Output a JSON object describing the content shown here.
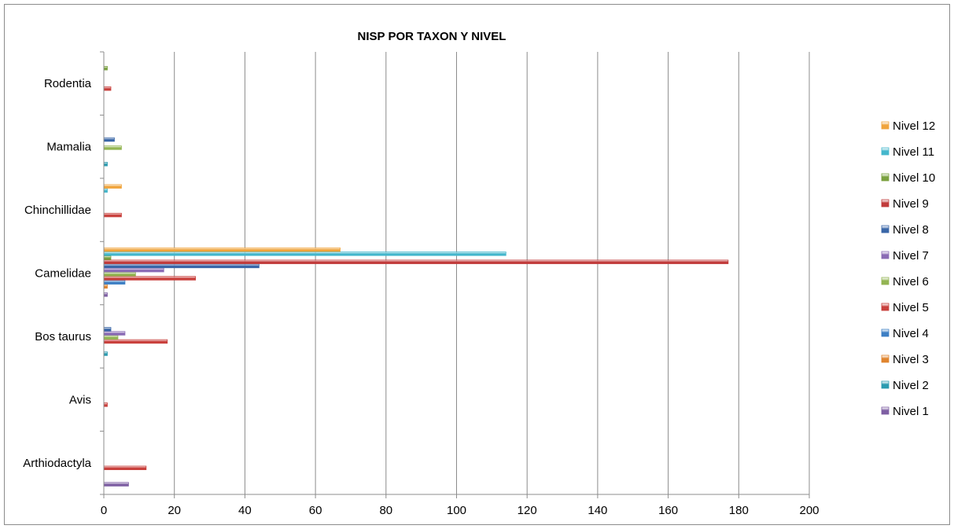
{
  "chart_data": {
    "type": "bar",
    "orientation": "horizontal",
    "title": "NISP POR  TAXON Y NIVEL",
    "xlabel": "",
    "ylabel": "",
    "xlim": [
      0,
      200
    ],
    "x_ticks": [
      0,
      20,
      40,
      60,
      80,
      100,
      120,
      140,
      160,
      180,
      200
    ],
    "grid": "vertical",
    "legend_position": "right",
    "categories": [
      "Arthiodactyla",
      "Avis",
      "Bos taurus",
      "Camelidae",
      "Chinchillidae",
      "Mamalia",
      "Rodentia"
    ],
    "series": [
      {
        "name": "Nivel 1",
        "color": "#7e5fa3",
        "values": [
          7,
          0,
          0,
          1,
          0,
          0,
          0
        ]
      },
      {
        "name": "Nivel 2",
        "color": "#2b9bb0",
        "values": [
          0,
          0,
          1,
          0,
          0,
          1,
          0
        ]
      },
      {
        "name": "Nivel 3",
        "color": "#e0852e",
        "values": [
          0,
          0,
          0,
          1,
          0,
          0,
          0
        ]
      },
      {
        "name": "Nivel 4",
        "color": "#3d7fc4",
        "values": [
          0,
          0,
          0,
          6,
          0,
          0,
          0
        ]
      },
      {
        "name": "Nivel 5",
        "color": "#c9403d",
        "values": [
          12,
          1,
          18,
          26,
          5,
          0,
          2
        ]
      },
      {
        "name": "Nivel 6",
        "color": "#93b553",
        "values": [
          0,
          0,
          4,
          9,
          0,
          5,
          0
        ]
      },
      {
        "name": "Nivel 7",
        "color": "#8a6bb5",
        "values": [
          0,
          0,
          6,
          17,
          0,
          0,
          0
        ]
      },
      {
        "name": "Nivel 8",
        "color": "#3a67a8",
        "values": [
          0,
          0,
          2,
          44,
          0,
          3,
          0
        ]
      },
      {
        "name": "Nivel 9",
        "color": "#c13b3b",
        "values": [
          0,
          0,
          0,
          177,
          0,
          0,
          0
        ]
      },
      {
        "name": "Nivel 10",
        "color": "#7aa13f",
        "values": [
          0,
          0,
          0,
          2,
          0,
          0,
          1
        ]
      },
      {
        "name": "Nivel 11",
        "color": "#45b7cc",
        "values": [
          0,
          0,
          0,
          114,
          1,
          0,
          0
        ]
      },
      {
        "name": "Nivel 12",
        "color": "#f0a43c",
        "values": [
          0,
          0,
          0,
          67,
          5,
          0,
          0
        ]
      }
    ]
  }
}
